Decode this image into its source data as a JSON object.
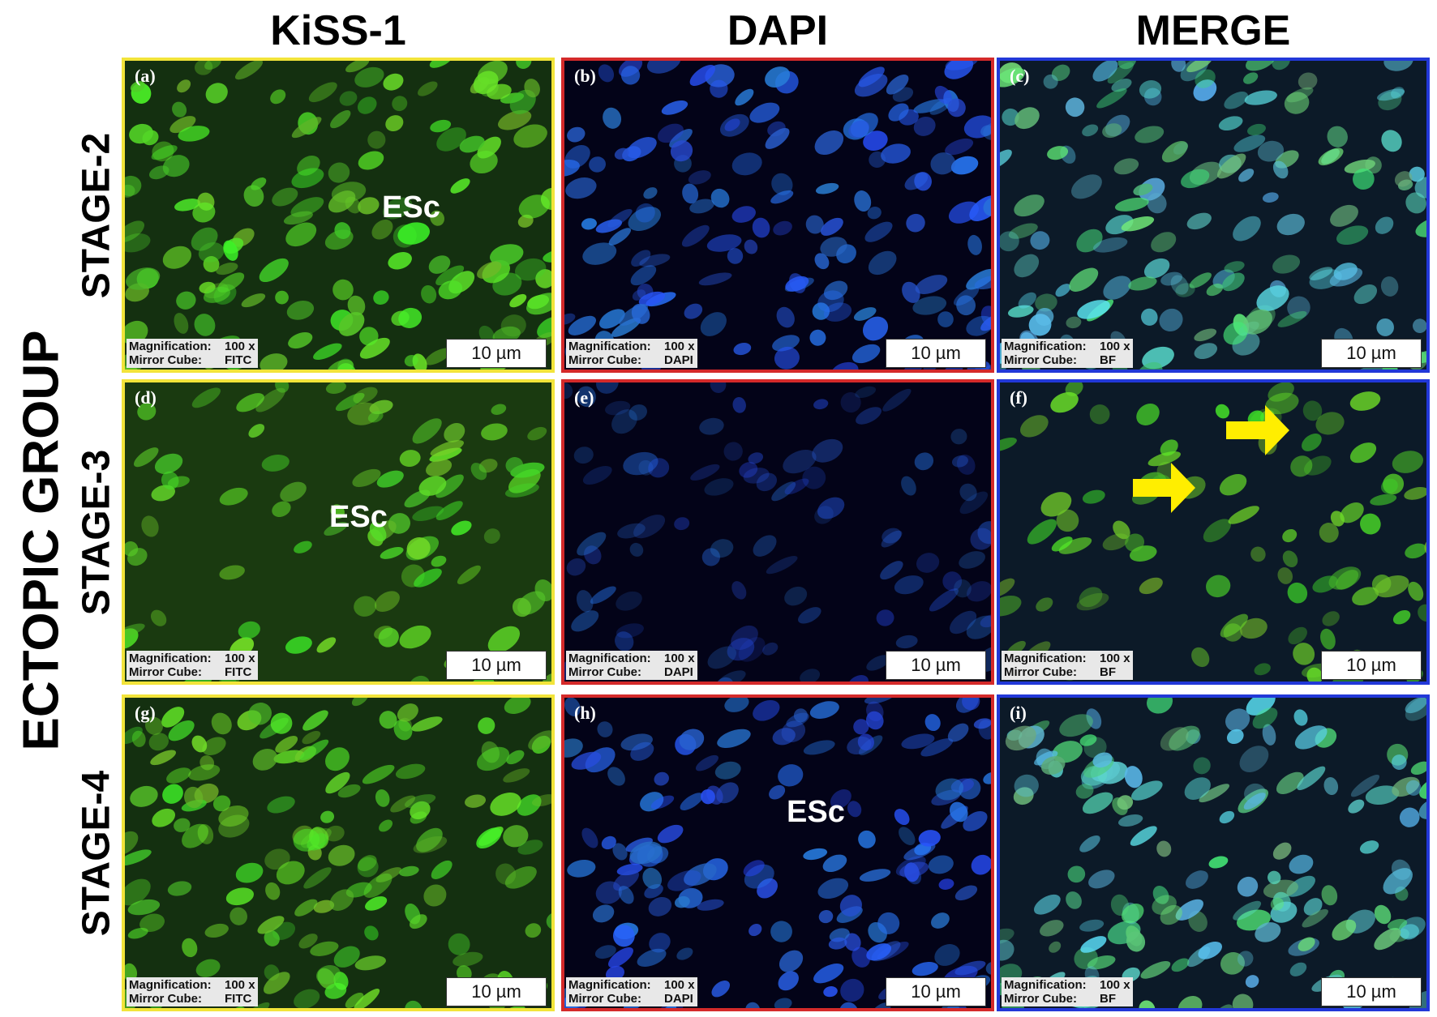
{
  "columns": [
    "KiSS-1",
    "DAPI",
    "MERGE"
  ],
  "group_label": "ECTOPIC GROUP",
  "rows": [
    {
      "label": "STAGE-2",
      "panels": [
        {
          "letter": "(a)",
          "magnification_label": "Magnification:",
          "magnification_value": "100 x",
          "mirror_cube_label": "Mirror Cube:",
          "mirror_cube_value": "FITC",
          "scale": "10 µm",
          "annotation": "ESc"
        },
        {
          "letter": "(b)",
          "magnification_label": "Magnification:",
          "magnification_value": "100 x",
          "mirror_cube_label": "Mirror Cube:",
          "mirror_cube_value": "DAPI",
          "scale": "10 µm"
        },
        {
          "letter": "(c)",
          "magnification_label": "Magnification:",
          "magnification_value": "100 x",
          "mirror_cube_label": "Mirror Cube:",
          "mirror_cube_value": "BF",
          "scale": "10 µm"
        }
      ]
    },
    {
      "label": "STAGE-3",
      "panels": [
        {
          "letter": "(d)",
          "magnification_label": "Magnification:",
          "magnification_value": "100 x",
          "mirror_cube_label": "Mirror Cube:",
          "mirror_cube_value": "FITC",
          "scale": "10 µm",
          "annotation": "ESc"
        },
        {
          "letter": "(e)",
          "magnification_label": "Magnification:",
          "magnification_value": "100 x",
          "mirror_cube_label": "Mirror Cube:",
          "mirror_cube_value": "DAPI",
          "scale": "10 µm"
        },
        {
          "letter": "(f)",
          "magnification_label": "Magnification:",
          "magnification_value": "100 x",
          "mirror_cube_label": "Mirror Cube:",
          "mirror_cube_value": "BF",
          "scale": "10 µm"
        }
      ]
    },
    {
      "label": "STAGE-4",
      "panels": [
        {
          "letter": "(g)",
          "magnification_label": "Magnification:",
          "magnification_value": "100 x",
          "mirror_cube_label": "Mirror Cube:",
          "mirror_cube_value": "FITC",
          "scale": "10 µm"
        },
        {
          "letter": "(h)",
          "magnification_label": "Magnification:",
          "magnification_value": "100 x",
          "mirror_cube_label": "Mirror Cube:",
          "mirror_cube_value": "DAPI",
          "scale": "10 µm",
          "annotation": "ESc"
        },
        {
          "letter": "(i)",
          "magnification_label": "Magnification:",
          "magnification_value": "100 x",
          "mirror_cube_label": "Mirror Cube:",
          "mirror_cube_value": "BF",
          "scale": "10 µm"
        }
      ]
    }
  ]
}
